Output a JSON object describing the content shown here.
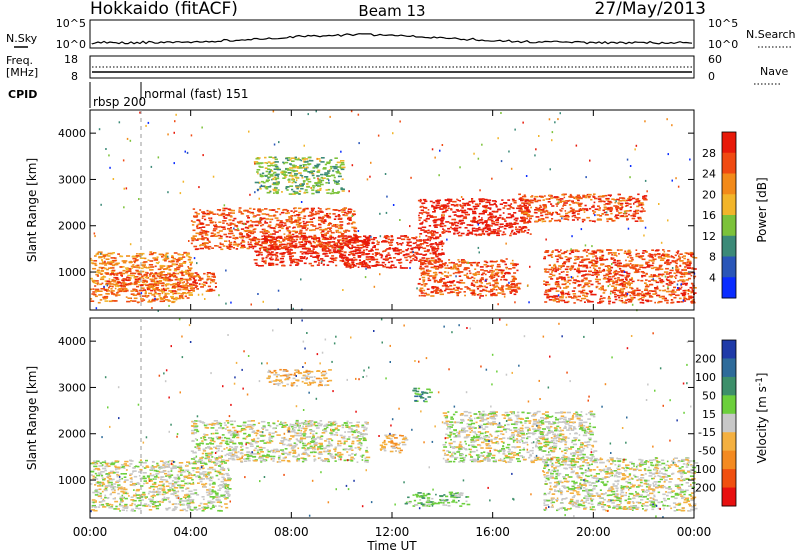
{
  "header": {
    "radar": "Hokkaido (fitACF)",
    "beam": "Beam 13",
    "date": "27/May/2013"
  },
  "nsky_panel": {
    "left_label": "N.Sky",
    "right_label": "N.Search",
    "left_ticks": [
      "10^5",
      "10^0"
    ],
    "right_ticks": [
      "10^5",
      "10^0"
    ]
  },
  "freq_panel": {
    "left_label_1": "Freq.",
    "left_label_2": "[MHz]",
    "right_label": "Nave",
    "left_ticks": [
      "18",
      "8"
    ],
    "right_ticks": [
      "60",
      "0"
    ]
  },
  "cpid_panel": {
    "label": "CPID",
    "modes": [
      {
        "start": "00:00",
        "text": "rbsp 200"
      },
      {
        "start": "02:00",
        "text": "normal (fast) 151"
      }
    ]
  },
  "chart_data": [
    {
      "type": "heatmap",
      "panel": "power",
      "ylabel": "Slant Range [km]",
      "xlabel": "",
      "ylim": [
        180,
        4500
      ],
      "y_ticks": [
        1000,
        2000,
        3000,
        4000
      ],
      "x_ticks": [
        "00:00",
        "04:00",
        "08:00",
        "12:00",
        "16:00",
        "20:00",
        "00:00"
      ],
      "colorbar": {
        "label": "Power [dB]",
        "ticks": [
          "4",
          "8",
          "12",
          "16",
          "20",
          "24",
          "28"
        ],
        "colors": [
          "#0a2cff",
          "#2a56b8",
          "#3c8a78",
          "#7cc23a",
          "#f2b52a",
          "#f28a1a",
          "#f04a12",
          "#e81a0a"
        ]
      },
      "echo_regions": [
        {
          "t0": 0.0,
          "t1": 4.0,
          "r0": 350,
          "r1": 1450,
          "level": 5
        },
        {
          "t0": 0.5,
          "t1": 5.0,
          "r0": 600,
          "r1": 1000,
          "level": 6
        },
        {
          "t0": 4.0,
          "t1": 10.5,
          "r0": 1500,
          "r1": 2400,
          "level": 6
        },
        {
          "t0": 6.5,
          "t1": 11.0,
          "r0": 1150,
          "r1": 1800,
          "level": 7
        },
        {
          "t0": 10.0,
          "t1": 14.0,
          "r0": 1100,
          "r1": 1800,
          "level": 7
        },
        {
          "t0": 13.0,
          "t1": 17.5,
          "r0": 1800,
          "r1": 2600,
          "level": 7
        },
        {
          "t0": 17.0,
          "t1": 22.0,
          "r0": 2100,
          "r1": 2700,
          "level": 6
        },
        {
          "t0": 18.0,
          "t1": 24.0,
          "r0": 350,
          "r1": 1500,
          "level": 6
        },
        {
          "t0": 6.5,
          "t1": 10.0,
          "r0": 2700,
          "r1": 3500,
          "level": 3
        },
        {
          "t0": 13.0,
          "t1": 17.0,
          "r0": 500,
          "r1": 1300,
          "level": 6
        }
      ]
    },
    {
      "type": "heatmap",
      "panel": "velocity",
      "ylabel": "Slant Range [km]",
      "xlabel": "Time UT",
      "ylim": [
        180,
        4500
      ],
      "y_ticks": [
        1000,
        2000,
        3000,
        4000
      ],
      "x_ticks": [
        "00:00",
        "04:00",
        "08:00",
        "12:00",
        "16:00",
        "20:00",
        "00:00"
      ],
      "colorbar": {
        "label": "Velocity [m s^-1]",
        "ticks": [
          "200",
          "100",
          "50",
          "15",
          "-15",
          "-50",
          "-100",
          "-200"
        ],
        "colors": [
          "#1f3aa8",
          "#2e6b9a",
          "#3d8f6a",
          "#6ccf3c",
          "#c8c8c8",
          "#f4b040",
          "#f48a20",
          "#f05010",
          "#e81010"
        ]
      },
      "echo_regions": [
        {
          "t0": 0.0,
          "t1": 5.5,
          "r0": 350,
          "r1": 1450,
          "level": 4
        },
        {
          "t0": 4.0,
          "t1": 11.0,
          "r0": 1400,
          "r1": 2300,
          "level": 4
        },
        {
          "t0": 7.0,
          "t1": 9.5,
          "r0": 3050,
          "r1": 3400,
          "level": 5
        },
        {
          "t0": 12.5,
          "t1": 15.0,
          "r0": 450,
          "r1": 750,
          "level": 3
        },
        {
          "t0": 14.0,
          "t1": 20.0,
          "r0": 1400,
          "r1": 2500,
          "level": 4
        },
        {
          "t0": 18.0,
          "t1": 24.0,
          "r0": 350,
          "r1": 1500,
          "level": 4
        },
        {
          "t0": 11.5,
          "t1": 12.5,
          "r0": 1600,
          "r1": 2000,
          "level": 5
        },
        {
          "t0": 12.8,
          "t1": 13.5,
          "r0": 2700,
          "r1": 3000,
          "level": 2
        }
      ]
    }
  ]
}
